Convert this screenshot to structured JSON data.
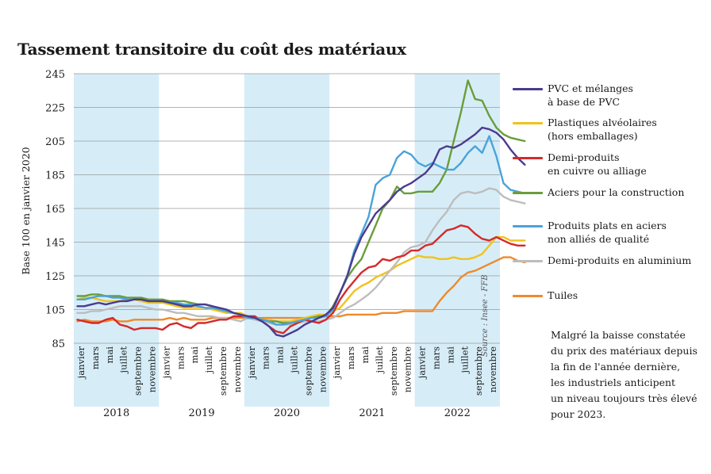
{
  "title": "Tassement transitoire du coût des matériaux",
  "note": "Malgré la baisse constatée\ndu prix des matériaux depuis\nla fin de l'année dernière,\nles industriels anticipent\nun niveau toujours très élevé\npour 2023.",
  "source": "Source : Insee - FFB",
  "colors": {
    "band": "#d6edf8",
    "grid": "#9a9a9a",
    "text": "#1a1a1a"
  },
  "chart_data": {
    "type": "line",
    "title": "Tassement transitoire du coût des matériaux",
    "ylabel": "Base 100 en janvier 2020",
    "ylim": [
      85,
      245
    ],
    "yticks": [
      "245",
      "225",
      "205",
      "185",
      "165",
      "145",
      "125",
      "105",
      "85"
    ],
    "grid": true,
    "legend": "right",
    "month_labels": [
      "janvier",
      "mars",
      "mai",
      "juillet",
      "septembre",
      "novembre"
    ],
    "years": [
      "2018",
      "2019",
      "2020",
      "2021",
      "2022"
    ],
    "shaded_years": [
      "2018",
      "2020",
      "2022"
    ],
    "x_start": "2018-01",
    "series": [
      {
        "name": "PVC et mélanges\nà base de PVC",
        "color": "#4a3b8f",
        "values": [
          107,
          107,
          108,
          109,
          108,
          109,
          110,
          110,
          111,
          111,
          110,
          110,
          110,
          109,
          108,
          107,
          107,
          108,
          108,
          107,
          106,
          105,
          103,
          102,
          101,
          100,
          98,
          95,
          90,
          89,
          91,
          93,
          96,
          98,
          100,
          102,
          106,
          115,
          125,
          138,
          148,
          155,
          162,
          166,
          170,
          175,
          178,
          180,
          183,
          186,
          191,
          200,
          202,
          201,
          203,
          206,
          209,
          213,
          212,
          210,
          206,
          200,
          195,
          191
        ]
      },
      {
        "name": "Plastiques alvéolaires\n(hors emballages)",
        "color": "#f2c21b",
        "values": [
          111,
          112,
          112,
          111,
          110,
          110,
          110,
          111,
          111,
          110,
          109,
          109,
          109,
          108,
          107,
          106,
          106,
          106,
          106,
          105,
          104,
          103,
          103,
          103,
          101,
          100,
          99,
          99,
          98,
          98,
          98,
          99,
          100,
          101,
          102,
          102,
          104,
          106,
          111,
          116,
          119,
          121,
          124,
          126,
          128,
          131,
          133,
          135,
          137,
          136,
          136,
          135,
          135,
          136,
          135,
          135,
          136,
          138,
          143,
          148,
          148,
          146,
          146,
          146
        ]
      },
      {
        "name": "Demi-produits\nen cuivre ou alliage",
        "color": "#d42a2a",
        "values": [
          99,
          98,
          97,
          97,
          99,
          100,
          96,
          95,
          93,
          94,
          94,
          94,
          93,
          96,
          97,
          95,
          94,
          97,
          97,
          98,
          99,
          99,
          101,
          101,
          101,
          101,
          98,
          95,
          92,
          91,
          95,
          97,
          99,
          98,
          97,
          99,
          103,
          111,
          117,
          122,
          127,
          130,
          131,
          135,
          134,
          136,
          137,
          140,
          140,
          143,
          144,
          148,
          152,
          153,
          155,
          154,
          150,
          147,
          146,
          148,
          146,
          144,
          143,
          143
        ]
      },
      {
        "name": "Aciers pour la construction",
        "color": "#6a9d3a",
        "values": [
          113,
          113,
          114,
          114,
          113,
          113,
          113,
          112,
          112,
          112,
          111,
          111,
          111,
          110,
          110,
          110,
          109,
          108,
          108,
          107,
          105,
          104,
          103,
          102,
          100,
          100,
          99,
          98,
          98,
          97,
          97,
          98,
          99,
          100,
          101,
          101,
          107,
          115,
          124,
          130,
          135,
          145,
          155,
          165,
          170,
          178,
          174,
          174,
          175,
          175,
          175,
          180,
          188,
          205,
          222,
          241,
          230,
          229,
          220,
          213,
          209,
          207,
          206,
          205
        ]
      },
      {
        "name": "Produits plats en aciers\nnon alliés de qualité",
        "color": "#4aa3da",
        "values": [
          111,
          111,
          112,
          113,
          113,
          112,
          112,
          111,
          111,
          111,
          110,
          110,
          110,
          109,
          109,
          108,
          108,
          107,
          106,
          106,
          105,
          104,
          103,
          102,
          100,
          100,
          99,
          98,
          96,
          96,
          97,
          98,
          99,
          100,
          100,
          101,
          105,
          115,
          125,
          140,
          150,
          160,
          179,
          183,
          185,
          195,
          199,
          197,
          192,
          190,
          192,
          190,
          188,
          188,
          192,
          198,
          202,
          198,
          208,
          196,
          180,
          176,
          175,
          174
        ]
      },
      {
        "name": "Demi-produits en aluminium",
        "color": "#bdbdbd",
        "values": [
          103,
          103,
          104,
          104,
          105,
          106,
          107,
          107,
          107,
          107,
          106,
          105,
          105,
          104,
          103,
          103,
          102,
          101,
          101,
          101,
          100,
          100,
          99,
          98,
          100,
          99,
          98,
          97,
          96,
          96,
          96,
          97,
          98,
          98,
          98,
          99,
          100,
          103,
          106,
          108,
          111,
          114,
          118,
          123,
          128,
          133,
          139,
          142,
          143,
          145,
          152,
          158,
          163,
          170,
          174,
          175,
          174,
          175,
          177,
          176,
          172,
          170,
          169,
          168
        ]
      },
      {
        "name": "Tuiles",
        "color": "#ee8a2c",
        "values": [
          98,
          99,
          98,
          98,
          98,
          99,
          98,
          98,
          99,
          99,
          99,
          99,
          99,
          100,
          99,
          100,
          99,
          99,
          99,
          100,
          100,
          100,
          100,
          100,
          100,
          100,
          100,
          100,
          100,
          100,
          100,
          100,
          100,
          100,
          101,
          101,
          101,
          101,
          102,
          102,
          102,
          102,
          102,
          103,
          103,
          103,
          104,
          104,
          104,
          104,
          104,
          110,
          115,
          119,
          124,
          127,
          128,
          130,
          132,
          134,
          136,
          136,
          134,
          133
        ]
      }
    ]
  }
}
